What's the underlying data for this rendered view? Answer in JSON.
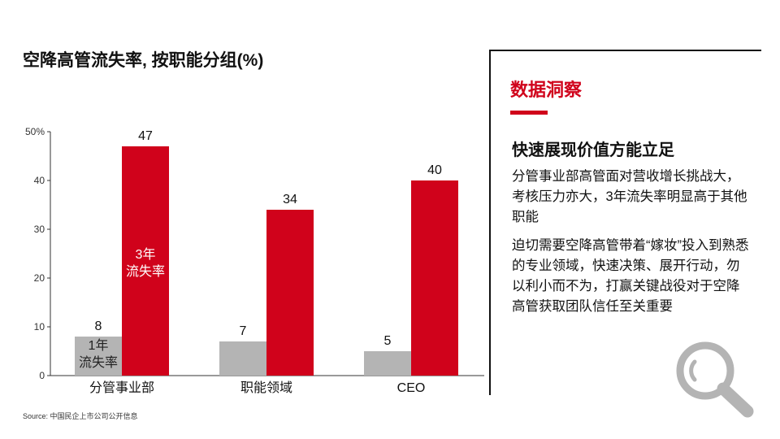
{
  "chart_data": {
    "type": "bar",
    "title": "空降高管流失率, 按职能分组(%)",
    "categories": [
      "分管事业部",
      "职能领域",
      "CEO"
    ],
    "series": [
      {
        "name": "1年\n流失率",
        "color": "#b4b4b4",
        "values": [
          8,
          7,
          5
        ]
      },
      {
        "name": "3年\n流失率",
        "color": "#d0021b",
        "values": [
          47,
          34,
          40
        ]
      }
    ],
    "y_ticks": [
      "0",
      "10",
      "20",
      "30",
      "40",
      "50%"
    ],
    "ylim": [
      0,
      50
    ],
    "grid": false,
    "legend": "inside first group bars"
  },
  "source": "Source: 中国民企上市公司公开信息",
  "panel": {
    "heading": "数据洞察",
    "subtitle": "快速展现价值方能立足",
    "paragraph1": "分管事业部高管面对营收增长挑战大，考核压力亦大，3年流失率明显高于其他职能",
    "paragraph2": "迫切需要空降高管带着“嫁妆”投入到熟悉的专业领域，快速决策、展开行动，勿以利小而不为，打赢关键战役对于空降高管获取团队信任至关重要",
    "icon": "magnifier-icon"
  },
  "colors": {
    "accent": "#d0021b",
    "secondary": "#b4b4b4"
  }
}
